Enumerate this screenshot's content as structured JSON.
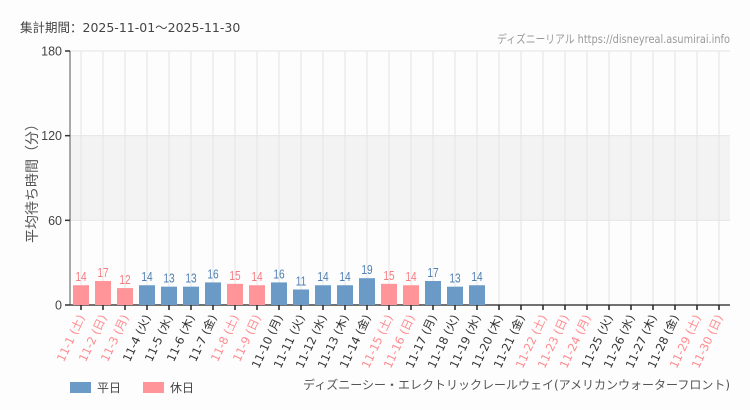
{
  "header": {
    "period_label": "集計期間：2025-11-01～2025-11-30",
    "credit": "ディズニーリアル https://disneyreal.asumirai.info"
  },
  "footer": {
    "attraction_name": "ディズニーシー・エレクトリックレールウェイ(アメリカンウォーターフロント)"
  },
  "legend": {
    "weekday": {
      "label": "平日",
      "color": "#6b9ac7"
    },
    "holiday": {
      "label": "休日",
      "color": "#ff9599"
    }
  },
  "colors": {
    "weekday_bar": "#6b9ac7",
    "holiday_bar": "#ff9599",
    "weekday_label": "#4f7fb3",
    "holiday_label": "#f77b82",
    "weekday_tick": "#333333",
    "holiday_tick": "#ff8a8f",
    "band": "#f3f3f3",
    "grid": "#e4e4e4"
  },
  "chart_data": {
    "type": "bar",
    "title": "",
    "xlabel": "",
    "ylabel": "平均待ち時間（分）",
    "ylim": [
      0,
      180
    ],
    "yticks": [
      0,
      60,
      120,
      180
    ],
    "shaded_band": [
      60,
      120
    ],
    "grid": true,
    "legend_position": "bottom-left",
    "categories": [
      "11-1 (土)",
      "11-2 (日)",
      "11-3 (月)",
      "11-4 (火)",
      "11-5 (水)",
      "11-6 (木)",
      "11-7 (金)",
      "11-8 (土)",
      "11-9 (日)",
      "11-10 (月)",
      "11-11 (火)",
      "11-12 (水)",
      "11-13 (木)",
      "11-14 (金)",
      "11-15 (土)",
      "11-16 (日)",
      "11-17 (月)",
      "11-18 (火)",
      "11-19 (水)",
      "11-20 (木)",
      "11-21 (金)",
      "11-22 (土)",
      "11-23 (日)",
      "11-24 (月)",
      "11-25 (火)",
      "11-26 (水)",
      "11-27 (木)",
      "11-28 (金)",
      "11-29 (土)",
      "11-30 (日)"
    ],
    "day_type": [
      "holiday",
      "holiday",
      "holiday",
      "weekday",
      "weekday",
      "weekday",
      "weekday",
      "holiday",
      "holiday",
      "weekday",
      "weekday",
      "weekday",
      "weekday",
      "weekday",
      "holiday",
      "holiday",
      "weekday",
      "weekday",
      "weekday",
      "weekday",
      "weekday",
      "holiday",
      "holiday",
      "holiday",
      "weekday",
      "weekday",
      "weekday",
      "weekday",
      "holiday",
      "holiday"
    ],
    "values": [
      14,
      17,
      12,
      14,
      13,
      13,
      16,
      15,
      14,
      16,
      11,
      14,
      14,
      19,
      15,
      14,
      17,
      13,
      14,
      null,
      null,
      null,
      null,
      null,
      null,
      null,
      null,
      null,
      null,
      null
    ],
    "series": [
      {
        "name": "平日",
        "values": [
          null,
          null,
          null,
          14,
          13,
          13,
          16,
          null,
          null,
          16,
          11,
          14,
          14,
          19,
          null,
          null,
          17,
          13,
          14,
          null,
          null,
          null,
          null,
          null,
          null,
          null,
          null,
          null,
          null,
          null
        ]
      },
      {
        "name": "休日",
        "values": [
          14,
          17,
          12,
          null,
          null,
          null,
          null,
          15,
          14,
          null,
          null,
          null,
          null,
          null,
          15,
          14,
          null,
          null,
          null,
          null,
          null,
          null,
          null,
          null,
          null,
          null,
          null,
          null,
          null,
          null
        ]
      }
    ]
  }
}
